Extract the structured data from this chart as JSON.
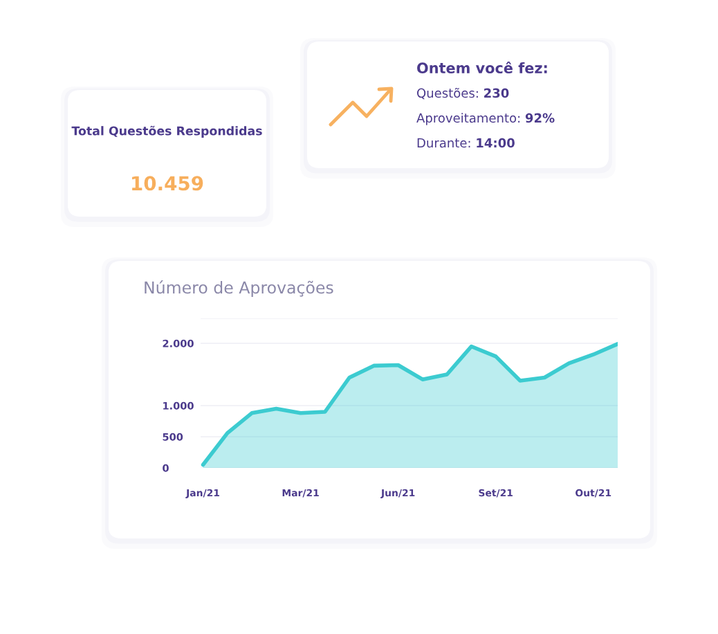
{
  "chart_data": [
    {
      "type": "other",
      "title": "Total Questões Respondidas",
      "annotations": [
        "10.459"
      ]
    },
    {
      "type": "other",
      "title": "Ontem você fez:",
      "annotations": [
        "Questões: 230",
        "Aproveitamento: 92%",
        "Durante: 14:00"
      ]
    },
    {
      "type": "area",
      "title": "Número de Aprovações",
      "color": "#3ccbd0",
      "categories": [
        "Jan/21",
        null,
        null,
        null,
        "Mar/21",
        null,
        null,
        null,
        "Jun/21",
        null,
        null,
        null,
        "Set/21",
        null,
        null,
        null,
        "Out/21",
        null
      ],
      "values": [
        50,
        560,
        880,
        950,
        880,
        900,
        1450,
        1640,
        1650,
        1420,
        1500,
        1950,
        1790,
        1400,
        1450,
        1680,
        1820,
        1990
      ],
      "ylim": [
        0,
        2400
      ],
      "yticks": [
        0,
        500,
        {
          "value": 1000,
          "label": "1.000"
        },
        {
          "value": 2000,
          "label": "2.000"
        },
        {
          "value": 2400,
          "label": null
        }
      ],
      "grid": "y",
      "legend": false,
      "marker": "none",
      "line_style": "solid"
    }
  ]
}
